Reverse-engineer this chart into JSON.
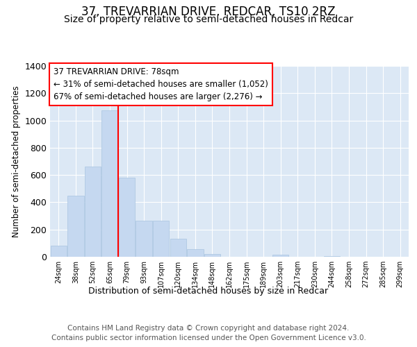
{
  "title1": "37, TREVARRIAN DRIVE, REDCAR, TS10 2RZ",
  "title2": "Size of property relative to semi-detached houses in Redcar",
  "xlabel": "Distribution of semi-detached houses by size in Redcar",
  "ylabel": "Number of semi-detached properties",
  "categories": [
    "24sqm",
    "38sqm",
    "52sqm",
    "65sqm",
    "79sqm",
    "93sqm",
    "107sqm",
    "120sqm",
    "134sqm",
    "148sqm",
    "162sqm",
    "175sqm",
    "189sqm",
    "203sqm",
    "217sqm",
    "230sqm",
    "244sqm",
    "258sqm",
    "272sqm",
    "285sqm",
    "299sqm"
  ],
  "values": [
    80,
    450,
    660,
    1075,
    580,
    265,
    265,
    130,
    55,
    20,
    0,
    0,
    0,
    15,
    0,
    0,
    5,
    0,
    0,
    0,
    0
  ],
  "bar_color": "#c5d8f0",
  "bar_edge_color": "#a8c4e0",
  "vline_color": "red",
  "annotation_text": "37 TREVARRIAN DRIVE: 78sqm\n← 31% of semi-detached houses are smaller (1,052)\n67% of semi-detached houses are larger (2,276) →",
  "annotation_box_color": "white",
  "annotation_box_edge": "red",
  "ylim": [
    0,
    1400
  ],
  "yticks": [
    0,
    200,
    400,
    600,
    800,
    1000,
    1200,
    1400
  ],
  "plot_background": "#dce8f5",
  "footer": "Contains HM Land Registry data © Crown copyright and database right 2024.\nContains public sector information licensed under the Open Government Licence v3.0.",
  "title_fontsize": 12,
  "subtitle_fontsize": 10,
  "annotation_fontsize": 8.5,
  "footer_fontsize": 7.5,
  "xlabel_fontsize": 9,
  "ylabel_fontsize": 8.5,
  "ytick_fontsize": 9,
  "xtick_fontsize": 7
}
